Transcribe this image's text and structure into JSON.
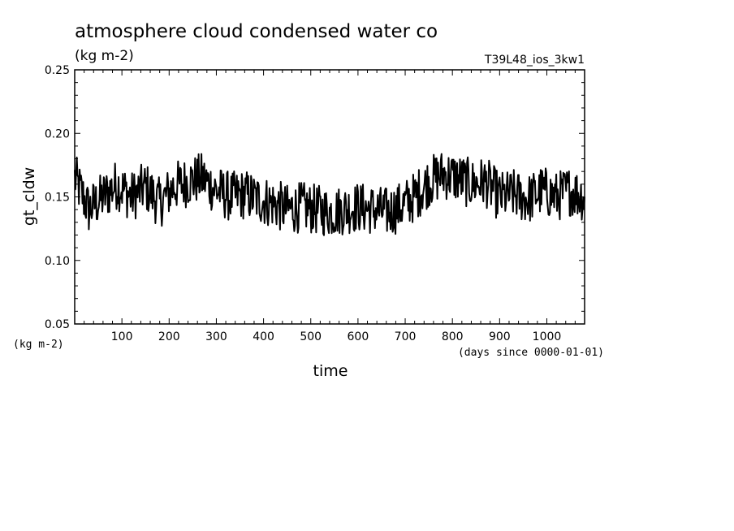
{
  "chart_data": {
    "type": "line",
    "title": "atmosphere cloud condensed water co",
    "units_label": "(kg m-2)",
    "run_label": "T39L48_ios_3kw1",
    "xlabel": "time",
    "x_units": "(days since 0000-01-01)",
    "ylabel": "gt_cldw",
    "y_units": "(kg m-2)",
    "xlim": [
      0,
      1080
    ],
    "ylim": [
      0.05,
      0.25
    ],
    "x_ticks": [
      "100",
      "200",
      "300",
      "400",
      "500",
      "600",
      "700",
      "800",
      "900",
      "1000"
    ],
    "y_ticks": [
      "0.05",
      "0.10",
      "0.15",
      "0.20",
      "0.25"
    ],
    "grid": false,
    "series": [
      {
        "x": [
          0,
          30,
          60,
          90,
          120,
          150,
          180,
          210,
          240,
          270,
          300,
          330,
          360,
          390,
          420,
          450,
          480,
          510,
          540,
          570,
          600,
          630,
          660,
          690,
          720,
          750,
          780,
          810,
          840,
          870,
          900,
          930,
          960,
          990,
          1020,
          1050,
          1080
        ],
        "values": [
          0.165,
          0.14,
          0.15,
          0.16,
          0.15,
          0.158,
          0.145,
          0.158,
          0.162,
          0.165,
          0.155,
          0.15,
          0.152,
          0.148,
          0.145,
          0.14,
          0.142,
          0.14,
          0.138,
          0.14,
          0.142,
          0.14,
          0.138,
          0.142,
          0.15,
          0.162,
          0.168,
          0.165,
          0.16,
          0.162,
          0.15,
          0.152,
          0.148,
          0.155,
          0.15,
          0.155,
          0.15
        ],
        "noise_amplitude": 0.02
      }
    ]
  }
}
